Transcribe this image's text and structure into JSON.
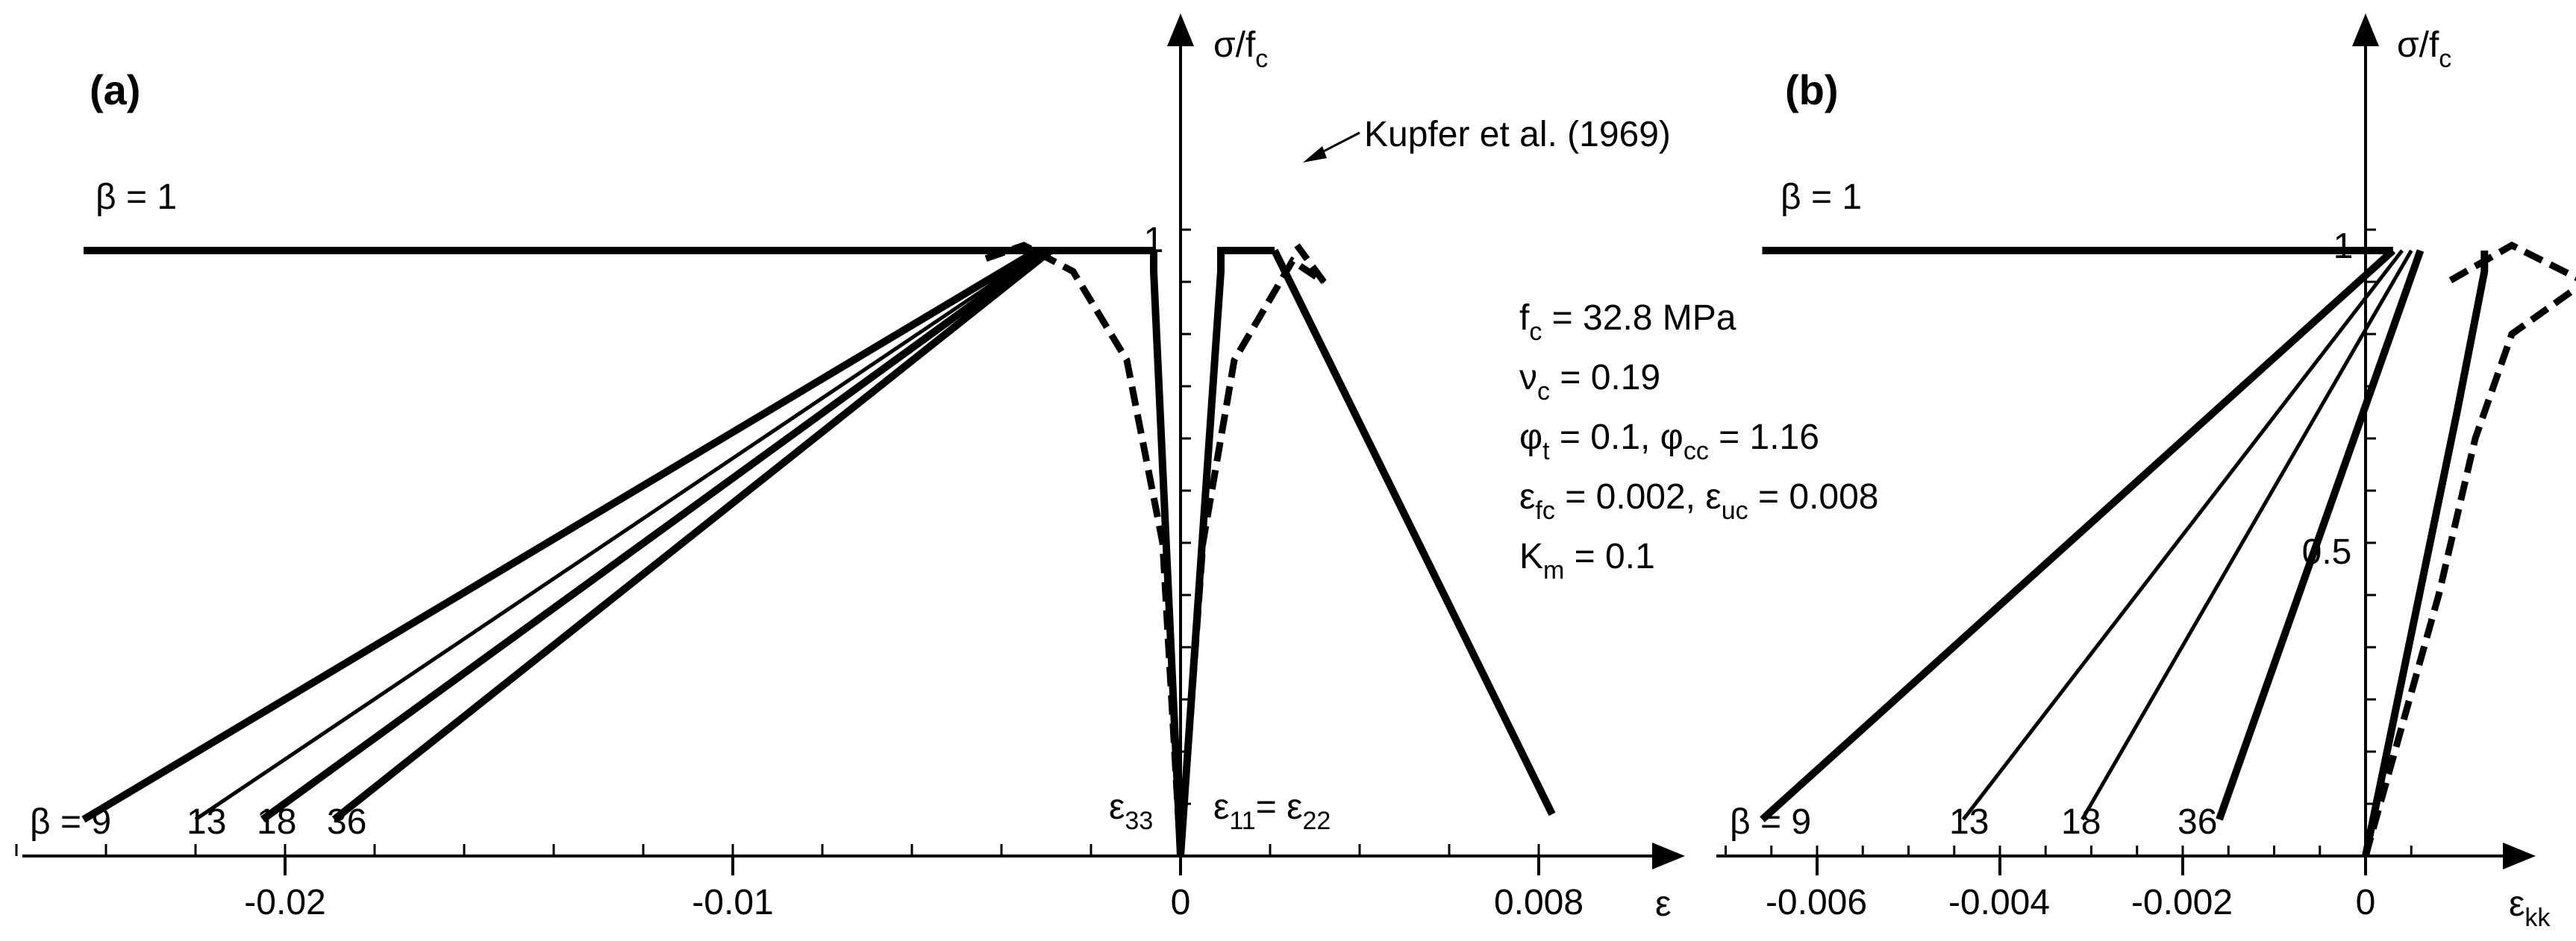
{
  "panels": {
    "a": {
      "tag": "(a)",
      "y_axis": "σ/f",
      "y_axis_sub": "c",
      "x_axis": "ε",
      "x_tick_labels": [
        "-0.02",
        "-0.01",
        "0",
        "0.008"
      ],
      "y_tick_label": "1",
      "beta_top": "β = 1",
      "beta_bottom": [
        "β = 9",
        "13",
        "18",
        "36"
      ],
      "curve_labels": {
        "e33": "ε",
        "e33_sub": "33",
        "e11": "ε",
        "e11_sub": "11",
        "e22_prefix": "= ε",
        "e22_sub": "22"
      },
      "kupfer": "Kupfer et al. (1969)"
    },
    "b": {
      "tag": "(b)",
      "y_axis": "σ/f",
      "y_axis_sub": "c",
      "x_axis": "ε",
      "x_axis_sub": "kk",
      "x_tick_labels": [
        "-0.006",
        "-0.004",
        "-0.002",
        "0"
      ],
      "y_tick_labels": [
        "1",
        "0.5"
      ],
      "beta_top": "β = 1",
      "beta_bottom": [
        "β = 9",
        "13",
        "18",
        "36"
      ]
    }
  },
  "params": [
    {
      "main": "f",
      "sub": "c",
      "rest": " = 32.8 MPa"
    },
    {
      "main": "ν",
      "sub": "c",
      "rest": " = 0.19"
    },
    {
      "main": "φ",
      "sub": "t",
      "rest": " = 0.1,  φ",
      "sub2": "cc",
      "rest2": " = 1.16"
    },
    {
      "main": "ε",
      "sub": "fc",
      "rest": " = 0.002,  ε",
      "sub2": "uc",
      "rest2": " = 0.008"
    },
    {
      "main": "K",
      "sub": "m",
      "rest": " = 0.1"
    }
  ],
  "chart_data": [
    {
      "type": "line",
      "panel": "a",
      "xlabel": "ε",
      "ylabel": "σ/fc",
      "xlim": [
        -0.0265,
        0.0095
      ],
      "ylim": [
        0,
        1.27
      ],
      "x_ticks": [
        -0.02,
        -0.01,
        0,
        0.008
      ],
      "series": [
        {
          "name": "β = 1",
          "x": [
            -0.0245,
            -0.0006
          ],
          "y": [
            1.16,
            1.16
          ]
        },
        {
          "name": "β = 9",
          "x": [
            -0.0245,
            -0.0032
          ],
          "y": [
            0.07,
            1.16
          ]
        },
        {
          "name": "13",
          "x": [
            -0.022,
            -0.0031
          ],
          "y": [
            0.07,
            1.16
          ]
        },
        {
          "name": "18",
          "x": [
            -0.0205,
            -0.003
          ],
          "y": [
            0.07,
            1.16
          ]
        },
        {
          "name": "36",
          "x": [
            -0.0189,
            -0.0029
          ],
          "y": [
            0.07,
            1.16
          ]
        },
        {
          "name": "ε33",
          "x": [
            0,
            -0.0006,
            -0.0006
          ],
          "y": [
            0,
            1.12,
            1.16
          ]
        },
        {
          "name": "ε11 = ε22",
          "x": [
            0,
            0.0009,
            0.0009,
            0.0021
          ],
          "y": [
            0,
            1.12,
            1.16,
            1.16
          ]
        },
        {
          "name": "ε11 (β = 1)",
          "x": [
            0.0021,
            0.0083
          ],
          "y": [
            1.16,
            0.08
          ]
        },
        {
          "name": "Kupfer et al. (1969) ε33",
          "x": [
            0,
            -0.0004,
            -0.0012,
            -0.0024,
            -0.0035,
            -0.0045
          ],
          "y": [
            0,
            0.6,
            0.95,
            1.12,
            1.17,
            1.14
          ]
        },
        {
          "name": "Kupfer et al. (1969) ε11",
          "x": [
            0,
            0.0005,
            0.0012,
            0.0025,
            0.0032,
            0.0026
          ],
          "y": [
            0,
            0.6,
            0.95,
            1.14,
            1.1,
            1.17
          ]
        }
      ]
    },
    {
      "type": "line",
      "panel": "b",
      "xlabel": "εkk",
      "ylabel": "σ/fc",
      "xlim": [
        -0.007,
        0.00065
      ],
      "ylim": [
        0,
        1.27
      ],
      "x_ticks": [
        -0.006,
        -0.004,
        -0.002,
        0
      ],
      "y_ticks": [
        0.5,
        1
      ],
      "series": [
        {
          "name": "β = 1",
          "x": [
            -0.0066,
            0.0003
          ],
          "y": [
            1.16,
            1.16
          ]
        },
        {
          "name": "β = 9",
          "x": [
            -0.0066,
            0.0003
          ],
          "y": [
            0.07,
            1.16
          ]
        },
        {
          "name": "13",
          "x": [
            -0.0044,
            0.0004
          ],
          "y": [
            0.07,
            1.16
          ]
        },
        {
          "name": "18",
          "x": [
            -0.0031,
            0.0005
          ],
          "y": [
            0.07,
            1.16
          ]
        },
        {
          "name": "36",
          "x": [
            -0.0016,
            0.0006
          ],
          "y": [
            0.07,
            1.16
          ]
        },
        {
          "name": "β = 1 (εkk)",
          "x": [
            0,
            0.001,
            0.0013,
            0.0013
          ],
          "y": [
            0,
            0.85,
            1.12,
            1.16
          ]
        },
        {
          "name": "Kupfer et al. (1969)",
          "x": [
            0,
            0.0008,
            0.0012,
            0.0016,
            0.0024,
            0.0016,
            0.0009
          ],
          "y": [
            0,
            0.5,
            0.8,
            1.0,
            1.1,
            1.17,
            1.1
          ]
        }
      ]
    }
  ]
}
